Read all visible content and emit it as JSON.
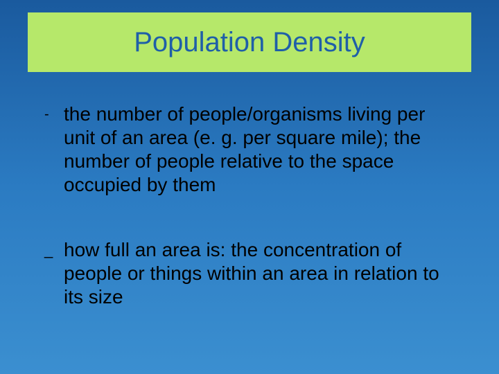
{
  "slide": {
    "title": "Population Density",
    "items": [
      {
        "bullet": "-",
        "text": "the number of people/organisms living per unit of an area (e. g. per square mile); the number of people relative to the space occupied by them"
      },
      {
        "bullet": "_",
        "text": "how full an area is: the concentration of people or things within an area in relation to its size"
      }
    ]
  },
  "style": {
    "background_gradient": [
      "#1a5a9e",
      "#2b7bc2",
      "#3b8fd0"
    ],
    "title_box_color": "#b6e86a",
    "title_text_color": "#1f5fa8",
    "title_fontsize": 40,
    "body_text_color": "#000000",
    "body_fontsize": 28,
    "body_lineheight": 34
  }
}
